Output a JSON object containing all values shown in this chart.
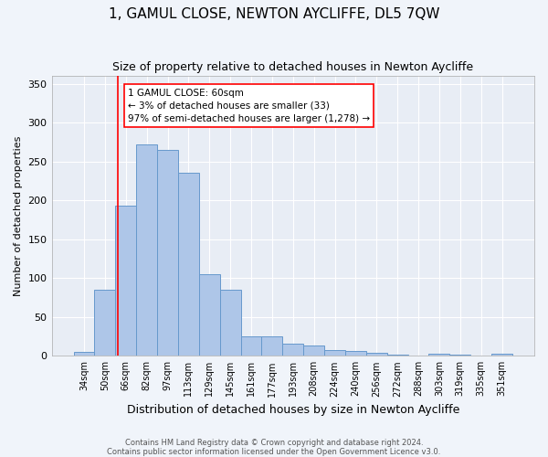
{
  "title": "1, GAMUL CLOSE, NEWTON AYCLIFFE, DL5 7QW",
  "subtitle": "Size of property relative to detached houses in Newton Aycliffe",
  "xlabel": "Distribution of detached houses by size in Newton Aycliffe",
  "ylabel": "Number of detached properties",
  "categories": [
    "34sqm",
    "50sqm",
    "66sqm",
    "82sqm",
    "97sqm",
    "113sqm",
    "129sqm",
    "145sqm",
    "161sqm",
    "177sqm",
    "193sqm",
    "208sqm",
    "224sqm",
    "240sqm",
    "256sqm",
    "272sqm",
    "288sqm",
    "303sqm",
    "319sqm",
    "335sqm",
    "351sqm"
  ],
  "values": [
    5,
    85,
    193,
    272,
    265,
    235,
    105,
    85,
    25,
    25,
    16,
    13,
    7,
    6,
    4,
    2,
    0,
    3,
    2,
    0,
    3
  ],
  "bar_color": "#aec6e8",
  "bar_edge_color": "#6699cc",
  "background_color": "#e8edf5",
  "grid_color": "#ffffff",
  "ylim": [
    0,
    360
  ],
  "yticks": [
    0,
    50,
    100,
    150,
    200,
    250,
    300,
    350
  ],
  "annotation_text": "1 GAMUL CLOSE: 60sqm\n← 3% of detached houses are smaller (33)\n97% of semi-detached houses are larger (1,278) →",
  "footer_line1": "Contains HM Land Registry data © Crown copyright and database right 2024.",
  "footer_line2": "Contains public sector information licensed under the Open Government Licence v3.0.",
  "title_fontsize": 11,
  "subtitle_fontsize": 9,
  "xlabel_fontsize": 9,
  "ylabel_fontsize": 8,
  "annotation_fontsize": 7.5,
  "footer_fontsize": 6
}
